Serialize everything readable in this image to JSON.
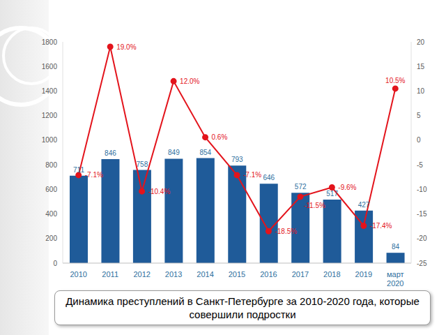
{
  "chart_data": {
    "type": "bar",
    "title": "Динамика преступлений в Санкт-Петербурге за 2010-2020 года, которые совершили подростки",
    "categories": [
      "2010",
      "2011",
      "2012",
      "2013",
      "2014",
      "2015",
      "2016",
      "2017",
      "2018",
      "2019",
      "март 2020"
    ],
    "series": [
      {
        "type": "bar",
        "color": "#1f5b99",
        "values": [
          711,
          846,
          758,
          849,
          854,
          793,
          646,
          572,
          517,
          427,
          84
        ]
      },
      {
        "type": "line",
        "axis": "y2",
        "color": "#e3141c",
        "marker": "circle",
        "values": [
          -7.1,
          19.0,
          -10.4,
          12.0,
          0.6,
          -7.1,
          -18.5,
          -11.5,
          -9.6,
          -17.4,
          10.5
        ],
        "value_labels": [
          "-7.1%",
          "19.0%",
          "-10.4%",
          "12.0%",
          "0.6%",
          "-7.1%",
          "-18.5%",
          "-11.5%",
          "-9.6%",
          "-17.4%",
          "10.5%"
        ]
      }
    ],
    "ylim": [
      0,
      1800
    ],
    "yticks": [
      0,
      200,
      400,
      600,
      800,
      1000,
      1200,
      1400,
      1600,
      1800
    ],
    "y2lim": [
      -25,
      20
    ],
    "y2ticks": [
      -25,
      -20,
      -15,
      -10,
      -5,
      0,
      5,
      10,
      15,
      20
    ],
    "grid": false,
    "data_labels": true
  }
}
